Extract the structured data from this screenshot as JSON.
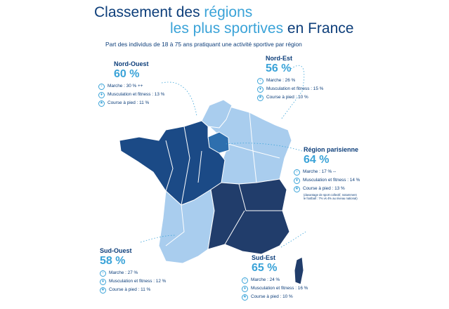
{
  "title": {
    "part1": "Classement des ",
    "part1_highlight": "régions",
    "part2_highlight": "les plus sportives",
    "part2": " en France"
  },
  "subtitle": "Part des individus de 18 à 75 ans pratiquant une activité sportive par région",
  "icons": {
    "marche": "walking-icon",
    "musculation": "weightlifting-icon",
    "course": "running-icon"
  },
  "colors": {
    "dark_blue": "#1b4a86",
    "navy": "#213d6b",
    "mid_blue": "#2e6fae",
    "light_blue": "#a9cdee",
    "accent": "#3aa3d8",
    "text": "#0d3e7a"
  },
  "regions": {
    "nord_ouest": {
      "name": "Nord-Ouest",
      "pct": "60 %",
      "marche": "Marche : 30 % ++",
      "musculation": "Musculation et fitness : 13 %",
      "course": "Course à pied : 11 %"
    },
    "nord_est": {
      "name": "Nord-Est",
      "pct": "56 %",
      "marche": "Marche : 26 %",
      "musculation": "Musculation et fitness : 15 %",
      "course": "Course à pied : 10 %"
    },
    "parisienne": {
      "name": "Région parisienne",
      "pct": "64 %",
      "marche": "Marche : 17 % --",
      "musculation": "Musculation et fitness : 14 %",
      "course": "Course à pied : 13 %",
      "note1": "(davantage de sport collectif, notamment",
      "note2": "le football : 7% vs 4% au niveau national)"
    },
    "sud_ouest": {
      "name": "Sud-Ouest",
      "pct": "58 %",
      "marche": "Marche : 27 %",
      "musculation": "Musculation et fitness : 12 %",
      "course": "Course à pied : 11 %"
    },
    "sud_est": {
      "name": "Sud-Est",
      "pct": "65 %",
      "marche": "Marche : 24 %",
      "musculation": "Musculation et fitness : 16 %",
      "course": "Course à pied : 10 %"
    }
  }
}
